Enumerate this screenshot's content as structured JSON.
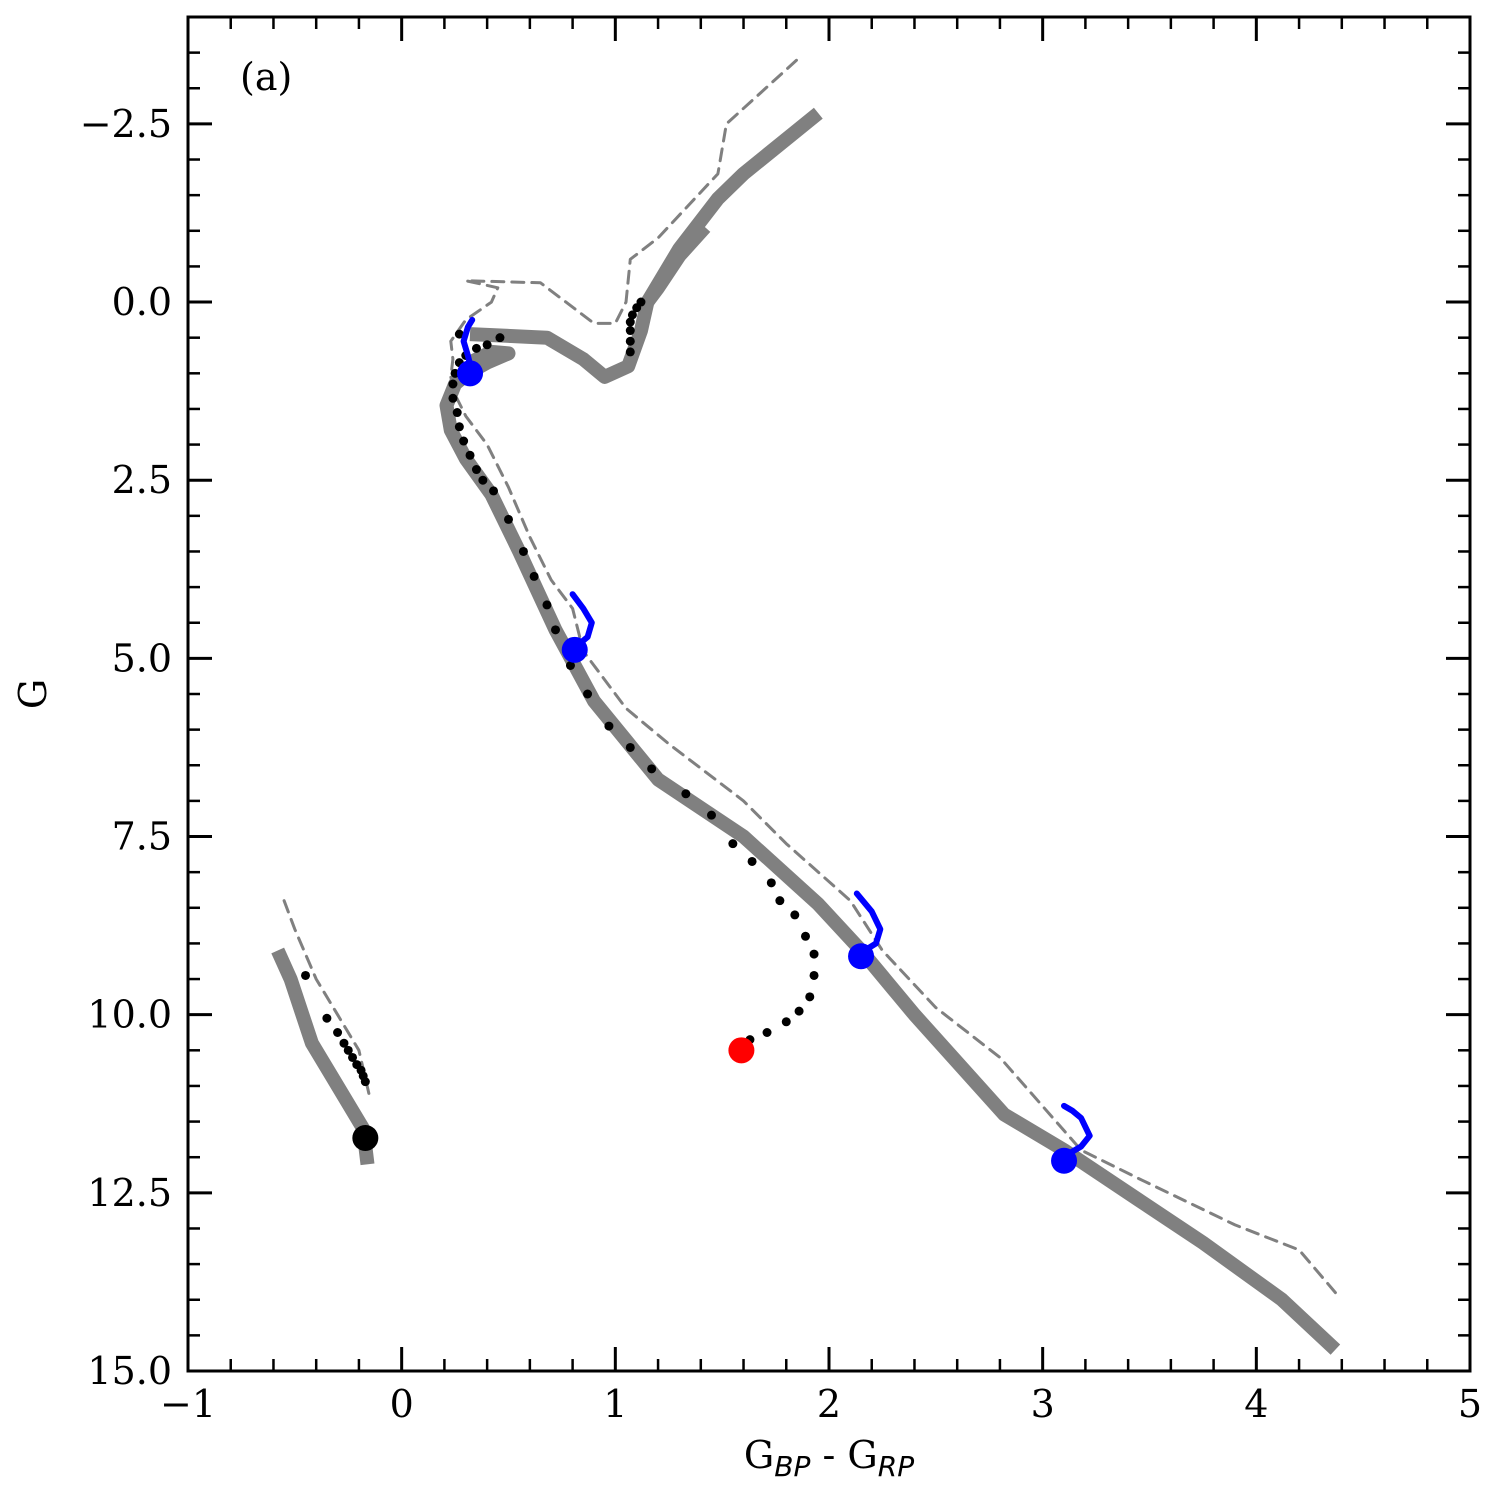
{
  "chart_data": {
    "type": "line",
    "panel_label": "(a)",
    "xlabel": {
      "main1": "G",
      "sub1": "BP",
      "sep": " - ",
      "main2": "G",
      "sub2": "RP"
    },
    "ylabel": "G",
    "xlim": [
      -1,
      5
    ],
    "ylim": [
      15.0,
      -4.0
    ],
    "y_inverted": true,
    "grid": false,
    "x_ticks": [
      -1,
      0,
      1,
      2,
      3,
      4,
      5
    ],
    "x_tick_labels": [
      "−1",
      "0",
      "1",
      "2",
      "3",
      "4",
      "5"
    ],
    "y_ticks": [
      -2.5,
      0.0,
      2.5,
      5.0,
      7.5,
      10.0,
      12.5,
      15.0
    ],
    "y_tick_labels": [
      "−2.5",
      "0.0",
      "2.5",
      "5.0",
      "7.5",
      "10.0",
      "12.5",
      "15.0"
    ],
    "colors": {
      "thick": "#808080",
      "dashed": "#808080",
      "dots": "#000000",
      "blue": "#0000ff",
      "red": "#ff0000",
      "end": "#000000"
    },
    "series": [
      {
        "role": "thick",
        "points": [
          [
            4.37,
            14.7
          ],
          [
            4.12,
            14.0
          ],
          [
            3.75,
            13.2
          ],
          [
            3.45,
            12.6
          ],
          [
            3.1,
            11.9
          ],
          [
            2.82,
            11.4
          ],
          [
            2.4,
            10.0
          ],
          [
            2.15,
            9.1
          ],
          [
            1.95,
            8.45
          ],
          [
            1.6,
            7.5
          ],
          [
            1.2,
            6.7
          ],
          [
            0.9,
            5.6
          ],
          [
            0.72,
            4.6
          ],
          [
            0.55,
            3.5
          ],
          [
            0.42,
            2.7
          ],
          [
            0.3,
            2.2
          ],
          [
            0.23,
            1.8
          ],
          [
            0.21,
            1.45
          ],
          [
            0.25,
            1.15
          ],
          [
            0.31,
            1.0
          ],
          [
            0.4,
            0.85
          ],
          [
            0.5,
            0.72
          ],
          [
            0.42,
            0.7
          ],
          [
            0.32,
            0.85
          ]
        ]
      },
      {
        "role": "thick",
        "points": [
          [
            0.32,
            0.45
          ],
          [
            0.68,
            0.5
          ],
          [
            0.85,
            0.8
          ],
          [
            0.95,
            1.05
          ],
          [
            1.06,
            0.9
          ],
          [
            1.12,
            0.4
          ],
          [
            1.15,
            0.0
          ],
          [
            1.2,
            -0.2
          ],
          [
            1.3,
            -0.65
          ],
          [
            1.42,
            -1.05
          ]
        ]
      },
      {
        "role": "thick",
        "points": [
          [
            1.15,
            0.0
          ],
          [
            1.3,
            -0.75
          ],
          [
            1.48,
            -1.45
          ],
          [
            1.6,
            -1.8
          ],
          [
            1.95,
            -2.65
          ]
        ]
      },
      {
        "role": "thick",
        "points": [
          [
            -0.58,
            9.1
          ],
          [
            -0.52,
            9.5
          ],
          [
            -0.42,
            10.4
          ],
          [
            -0.32,
            10.9
          ],
          [
            -0.18,
            11.6
          ],
          [
            -0.16,
            12.1
          ]
        ]
      },
      {
        "role": "dashed",
        "points": [
          [
            4.37,
            13.9
          ],
          [
            4.2,
            13.3
          ],
          [
            3.9,
            12.95
          ],
          [
            3.45,
            12.3
          ],
          [
            3.18,
            11.9
          ],
          [
            2.8,
            10.6
          ],
          [
            2.5,
            9.9
          ],
          [
            2.25,
            9.1
          ],
          [
            2.1,
            8.4
          ],
          [
            1.8,
            7.6
          ],
          [
            1.6,
            7.0
          ],
          [
            1.25,
            6.2
          ],
          [
            1.05,
            5.7
          ],
          [
            0.85,
            4.9
          ],
          [
            0.8,
            4.3
          ],
          [
            0.7,
            3.9
          ],
          [
            0.6,
            3.3
          ],
          [
            0.5,
            2.6
          ],
          [
            0.4,
            2.0
          ],
          [
            0.3,
            1.6
          ],
          [
            0.25,
            1.3
          ],
          [
            0.23,
            1.05
          ],
          [
            0.24,
            0.8
          ],
          [
            0.23,
            0.55
          ],
          [
            0.3,
            0.25
          ],
          [
            0.42,
            0.0
          ],
          [
            0.45,
            -0.2
          ],
          [
            0.3,
            -0.3
          ],
          [
            0.65,
            -0.27
          ],
          [
            0.9,
            0.3
          ],
          [
            1.0,
            0.3
          ],
          [
            1.05,
            0.0
          ],
          [
            1.07,
            -0.6
          ],
          [
            1.2,
            -0.9
          ],
          [
            1.48,
            -1.8
          ],
          [
            1.52,
            -2.5
          ],
          [
            1.85,
            -3.4
          ]
        ]
      },
      {
        "role": "dashed",
        "points": [
          [
            -0.55,
            8.4
          ],
          [
            -0.5,
            8.8
          ],
          [
            -0.4,
            9.5
          ],
          [
            -0.3,
            10.0
          ],
          [
            -0.2,
            10.5
          ],
          [
            -0.15,
            11.15
          ]
        ]
      },
      {
        "role": "dots",
        "points": [
          [
            1.93,
            9.15
          ],
          [
            1.93,
            9.45
          ],
          [
            1.91,
            9.75
          ],
          [
            1.86,
            9.95
          ],
          [
            1.8,
            10.1
          ],
          [
            1.71,
            10.25
          ],
          [
            1.63,
            10.35
          ],
          [
            1.89,
            8.9
          ],
          [
            1.84,
            8.6
          ],
          [
            1.77,
            8.4
          ],
          [
            1.73,
            8.15
          ],
          [
            1.64,
            7.85
          ],
          [
            1.55,
            7.6
          ],
          [
            1.45,
            7.2
          ],
          [
            1.33,
            6.9
          ],
          [
            1.17,
            6.55
          ],
          [
            1.07,
            6.25
          ],
          [
            0.97,
            5.95
          ],
          [
            0.87,
            5.5
          ],
          [
            0.79,
            5.1
          ],
          [
            0.72,
            4.6
          ],
          [
            0.68,
            4.25
          ],
          [
            0.62,
            3.85
          ],
          [
            0.57,
            3.5
          ],
          [
            0.5,
            3.05
          ],
          [
            0.43,
            2.65
          ],
          [
            0.38,
            2.5
          ],
          [
            0.35,
            2.35
          ],
          [
            0.32,
            2.15
          ],
          [
            0.29,
            1.95
          ],
          [
            0.27,
            1.75
          ],
          [
            0.26,
            1.55
          ],
          [
            0.24,
            1.35
          ],
          [
            0.24,
            1.15
          ],
          [
            0.25,
            1.0
          ],
          [
            0.27,
            0.85
          ],
          [
            0.3,
            0.75
          ],
          [
            0.35,
            0.65
          ],
          [
            0.4,
            0.6
          ],
          [
            0.46,
            0.5
          ],
          [
            0.27,
            0.45
          ],
          [
            1.07,
            0.7
          ],
          [
            1.07,
            0.55
          ],
          [
            1.07,
            0.4
          ],
          [
            1.07,
            0.28
          ],
          [
            1.08,
            0.18
          ],
          [
            1.1,
            0.08
          ],
          [
            1.12,
            0.0
          ],
          [
            -0.45,
            9.45
          ],
          [
            -0.35,
            10.05
          ],
          [
            -0.3,
            10.25
          ],
          [
            -0.27,
            10.4
          ],
          [
            -0.25,
            10.5
          ],
          [
            -0.23,
            10.6
          ],
          [
            -0.21,
            10.7
          ],
          [
            -0.19,
            10.78
          ],
          [
            -0.18,
            10.86
          ],
          [
            -0.17,
            10.94
          ]
        ]
      },
      {
        "role": "blue",
        "points": [
          [
            3.1,
            11.99
          ],
          [
            3.18,
            11.85
          ],
          [
            3.22,
            11.7
          ],
          [
            3.18,
            11.45
          ],
          [
            3.14,
            11.35
          ],
          [
            3.1,
            11.28
          ]
        ]
      },
      {
        "role": "blue",
        "points": [
          [
            2.15,
            9.13
          ],
          [
            2.22,
            9.0
          ],
          [
            2.24,
            8.8
          ],
          [
            2.2,
            8.55
          ],
          [
            2.13,
            8.3
          ]
        ]
      },
      {
        "role": "blue",
        "points": [
          [
            0.81,
            4.85
          ],
          [
            0.87,
            4.7
          ],
          [
            0.89,
            4.5
          ],
          [
            0.85,
            4.3
          ],
          [
            0.8,
            4.1
          ]
        ]
      },
      {
        "role": "blue",
        "points": [
          [
            0.33,
            1.0
          ],
          [
            0.31,
            0.75
          ],
          [
            0.29,
            0.55
          ],
          [
            0.31,
            0.35
          ],
          [
            0.33,
            0.25
          ]
        ]
      }
    ],
    "markers": [
      {
        "role": "blue",
        "x": 3.1,
        "y": 12.05
      },
      {
        "role": "blue",
        "x": 2.15,
        "y": 9.18
      },
      {
        "role": "blue",
        "x": 0.81,
        "y": 4.88
      },
      {
        "role": "blue",
        "x": 0.32,
        "y": 1.0
      },
      {
        "role": "red",
        "x": 1.59,
        "y": 10.5
      },
      {
        "role": "end",
        "x": -0.17,
        "y": 11.73
      }
    ]
  }
}
